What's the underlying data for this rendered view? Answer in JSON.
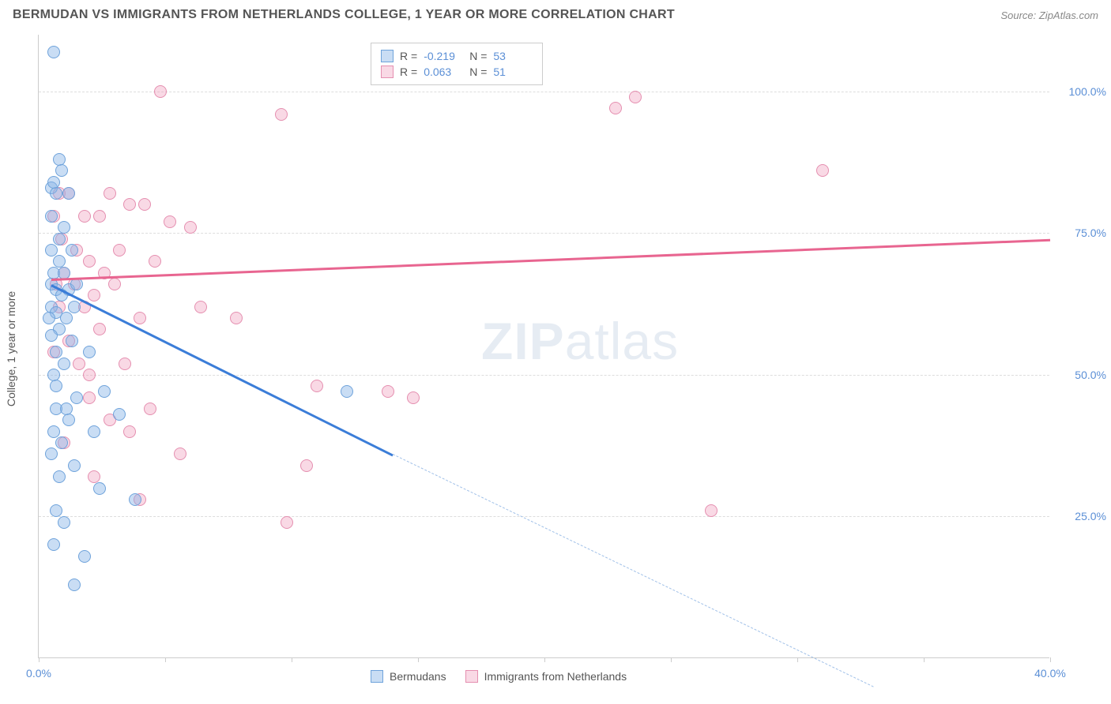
{
  "header": {
    "title": "BERMUDAN VS IMMIGRANTS FROM NETHERLANDS COLLEGE, 1 YEAR OR MORE CORRELATION CHART",
    "source": "Source: ZipAtlas.com"
  },
  "chart": {
    "type": "scatter",
    "y_axis_label": "College, 1 year or more",
    "xlim": [
      0,
      40
    ],
    "ylim": [
      0,
      110
    ],
    "x_ticks": [
      0,
      10,
      20,
      30,
      40
    ],
    "x_tick_labels": [
      "0.0%",
      "",
      "",
      "",
      "40.0%"
    ],
    "x_minor_ticks": [
      5,
      15,
      25,
      35
    ],
    "y_ticks": [
      25,
      50,
      75,
      100
    ],
    "y_tick_labels": [
      "25.0%",
      "50.0%",
      "75.0%",
      "100.0%"
    ],
    "background_color": "#ffffff",
    "grid_color": "#dddddd",
    "watermark": "ZIPatlas",
    "series": {
      "blue": {
        "label": "Bermudans",
        "fill_color": "rgba(135,180,230,0.45)",
        "stroke_color": "#6fa3db",
        "line_color": "#3b7dd8",
        "r_value": "-0.219",
        "n_value": "53",
        "trend": {
          "x1": 0.5,
          "y1": 66,
          "x2": 14,
          "y2": 36,
          "x2_dash": 33,
          "y2_dash": -5
        },
        "points": [
          [
            0.6,
            107
          ],
          [
            0.8,
            88
          ],
          [
            0.9,
            86
          ],
          [
            0.5,
            83
          ],
          [
            0.7,
            82
          ],
          [
            1.2,
            82
          ],
          [
            1.3,
            72
          ],
          [
            0.5,
            72
          ],
          [
            0.8,
            70
          ],
          [
            0.6,
            68
          ],
          [
            1.0,
            68
          ],
          [
            0.5,
            66
          ],
          [
            0.7,
            65
          ],
          [
            1.2,
            65
          ],
          [
            0.9,
            64
          ],
          [
            0.5,
            62
          ],
          [
            1.4,
            62
          ],
          [
            0.7,
            61
          ],
          [
            0.4,
            60
          ],
          [
            1.1,
            60
          ],
          [
            0.8,
            58
          ],
          [
            0.5,
            57
          ],
          [
            1.3,
            56
          ],
          [
            0.7,
            54
          ],
          [
            2.0,
            54
          ],
          [
            1.0,
            52
          ],
          [
            0.6,
            50
          ],
          [
            2.6,
            47
          ],
          [
            1.5,
            46
          ],
          [
            0.7,
            44
          ],
          [
            3.2,
            43
          ],
          [
            1.2,
            42
          ],
          [
            0.6,
            40
          ],
          [
            2.2,
            40
          ],
          [
            0.9,
            38
          ],
          [
            0.5,
            36
          ],
          [
            1.4,
            34
          ],
          [
            0.8,
            32
          ],
          [
            2.4,
            30
          ],
          [
            3.8,
            28
          ],
          [
            0.7,
            26
          ],
          [
            1.0,
            24
          ],
          [
            0.6,
            20
          ],
          [
            1.8,
            18
          ],
          [
            12.2,
            47
          ],
          [
            0.5,
            78
          ],
          [
            1.0,
            76
          ],
          [
            0.8,
            74
          ],
          [
            1.5,
            66
          ],
          [
            0.7,
            48
          ],
          [
            1.1,
            44
          ],
          [
            1.4,
            13
          ],
          [
            0.6,
            84
          ]
        ]
      },
      "pink": {
        "label": "Immigrants from Netherlands",
        "fill_color": "rgba(240,160,190,0.4)",
        "stroke_color": "#e58fb0",
        "line_color": "#e86590",
        "r_value": "0.063",
        "n_value": "51",
        "trend": {
          "x1": 0.5,
          "y1": 67,
          "x2": 40,
          "y2": 74
        },
        "points": [
          [
            4.8,
            100
          ],
          [
            9.6,
            96
          ],
          [
            0.8,
            82
          ],
          [
            1.2,
            82
          ],
          [
            2.8,
            82
          ],
          [
            4.2,
            80
          ],
          [
            3.6,
            80
          ],
          [
            0.6,
            78
          ],
          [
            1.8,
            78
          ],
          [
            2.4,
            78
          ],
          [
            5.2,
            77
          ],
          [
            6.0,
            76
          ],
          [
            0.9,
            74
          ],
          [
            1.5,
            72
          ],
          [
            3.2,
            72
          ],
          [
            2.0,
            70
          ],
          [
            4.6,
            70
          ],
          [
            2.6,
            68
          ],
          [
            1.0,
            68
          ],
          [
            0.7,
            66
          ],
          [
            1.4,
            66
          ],
          [
            3.0,
            66
          ],
          [
            2.2,
            64
          ],
          [
            0.8,
            62
          ],
          [
            1.8,
            62
          ],
          [
            6.4,
            62
          ],
          [
            4.0,
            60
          ],
          [
            7.8,
            60
          ],
          [
            2.4,
            58
          ],
          [
            1.2,
            56
          ],
          [
            0.6,
            54
          ],
          [
            3.4,
            52
          ],
          [
            2.0,
            50
          ],
          [
            11.0,
            48
          ],
          [
            13.8,
            47
          ],
          [
            14.8,
            46
          ],
          [
            4.4,
            44
          ],
          [
            2.8,
            42
          ],
          [
            3.6,
            40
          ],
          [
            1.0,
            38
          ],
          [
            5.6,
            36
          ],
          [
            10.6,
            34
          ],
          [
            2.2,
            32
          ],
          [
            4.0,
            28
          ],
          [
            9.8,
            24
          ],
          [
            23.6,
            99
          ],
          [
            31.0,
            86
          ],
          [
            26.6,
            26
          ],
          [
            22.8,
            97
          ],
          [
            1.6,
            52
          ],
          [
            2.0,
            46
          ]
        ]
      }
    },
    "stats_box": {
      "rows": [
        {
          "swatch": "blue",
          "r_label": "R =",
          "n_label": "N ="
        },
        {
          "swatch": "pink",
          "r_label": "R =",
          "n_label": "N ="
        }
      ]
    }
  }
}
